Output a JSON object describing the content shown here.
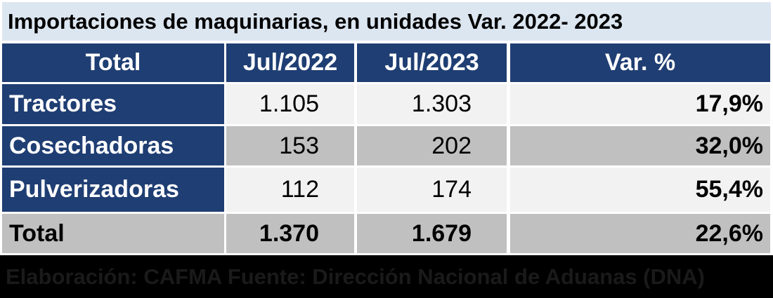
{
  "title": "Importaciones de maquinarias, en unidades Var. 2022- 2023",
  "table": {
    "header": [
      "Total",
      "Jul/2022",
      "Jul/2023",
      "Var. %"
    ],
    "rows": [
      [
        "Tractores",
        "1.105",
        "1.303",
        "17,9%"
      ],
      [
        "Cosechadoras",
        "153",
        "202",
        "32,0%"
      ],
      [
        "Pulverizadoras",
        "112",
        "174",
        "55,4%"
      ],
      [
        "Total",
        "1.370",
        "1.679",
        "22,6%"
      ]
    ]
  },
  "footer": "Elaboración: CAFMA Fuente: Dirección Nacional de Aduanas (DNA)"
}
